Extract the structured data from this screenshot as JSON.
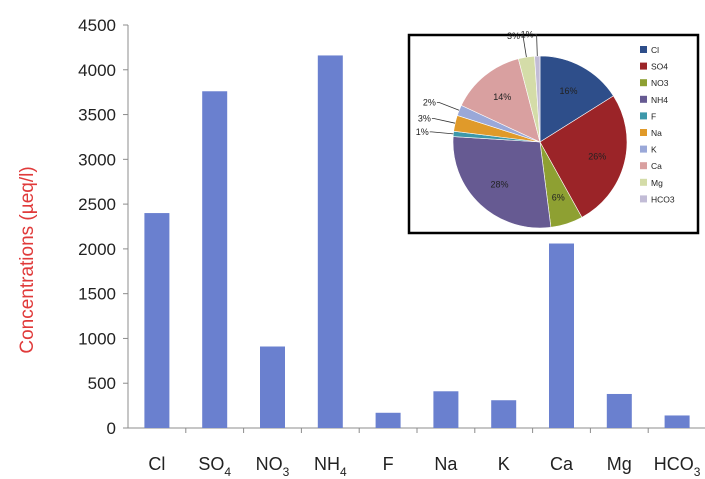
{
  "chart_data": [
    {
      "type": "bar",
      "ylabel": "Concentrations (µeq/l)",
      "ylabel_color": "#e03a3a",
      "bar_color": "#6a80cf",
      "ylim": [
        0,
        4500
      ],
      "yticks": [
        "0",
        "500",
        "1000",
        "1500",
        "2000",
        "2500",
        "3000",
        "3500",
        "4000",
        "4500"
      ],
      "categories": [
        {
          "base": "Cl",
          "sub": ""
        },
        {
          "base": "SO",
          "sub": "4"
        },
        {
          "base": "NO",
          "sub": "3"
        },
        {
          "base": "NH",
          "sub": "4"
        },
        {
          "base": "F",
          "sub": ""
        },
        {
          "base": "Na",
          "sub": ""
        },
        {
          "base": "K",
          "sub": ""
        },
        {
          "base": "Ca",
          "sub": ""
        },
        {
          "base": "Mg",
          "sub": ""
        },
        {
          "base": "HCO",
          "sub": "3"
        }
      ],
      "values": [
        2400,
        3760,
        910,
        4160,
        170,
        410,
        310,
        2060,
        380,
        140
      ],
      "grid": false
    },
    {
      "type": "pie",
      "legend_position": "right",
      "slices": [
        {
          "name": "Cl",
          "value": 16,
          "label": "16%",
          "color": "#2e4e8a"
        },
        {
          "name": "SO4",
          "value": 26,
          "label": "26%",
          "color": "#9b2428"
        },
        {
          "name": "NO3",
          "value": 6,
          "label": "6%",
          "color": "#8ea032"
        },
        {
          "name": "NH4",
          "value": 28,
          "label": "28%",
          "color": "#665a92"
        },
        {
          "name": "F",
          "value": 1,
          "label": "1%",
          "color": "#3d98aa"
        },
        {
          "name": "Na",
          "value": 3,
          "label": "3%",
          "color": "#e09a2a"
        },
        {
          "name": "K",
          "value": 2,
          "label": "2%",
          "color": "#9aa8d8"
        },
        {
          "name": "Ca",
          "value": 14,
          "label": "14%",
          "color": "#d9a0a0"
        },
        {
          "name": "Mg",
          "value": 3,
          "label": "3%",
          "color": "#d4dca8"
        },
        {
          "name": "HCO3",
          "value": 1,
          "label": "1%",
          "color": "#c2bcd6"
        }
      ]
    }
  ]
}
